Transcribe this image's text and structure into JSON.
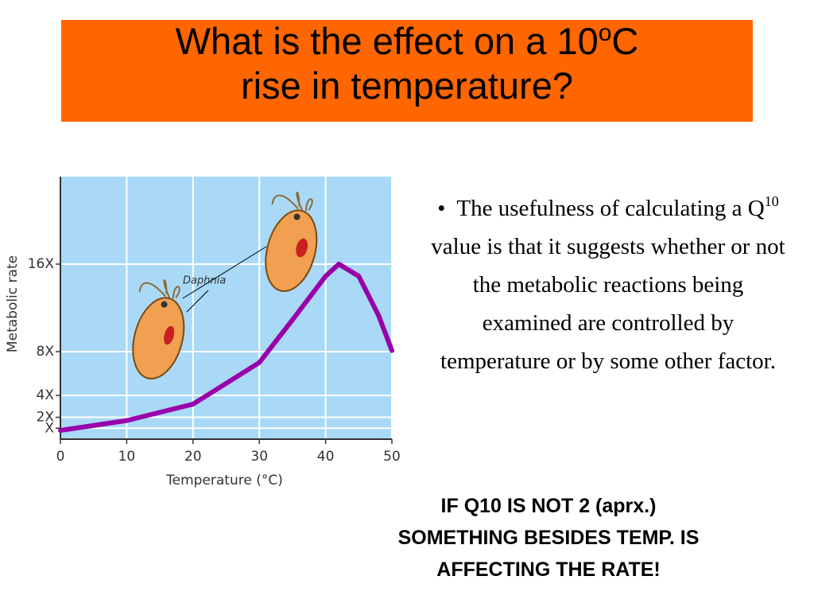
{
  "title": {
    "before": "What is the effect on a 10",
    "sup": "o",
    "after": "C",
    "line2": "rise in temperature?"
  },
  "bullet": {
    "before": "The usefulness of calculating a Q",
    "sup": "10",
    "after": " value is that it suggests whether or not the metabolic reactions being examined are controlled by temperature or by some other factor."
  },
  "conclusion": [
    "IF Q10 IS NOT 2 (aprx.)",
    "SOMETHING BESIDES TEMP. IS",
    "AFFECTING THE RATE!"
  ],
  "chart_data": {
    "type": "line",
    "x_label": "Temperature (°C)",
    "y_label": "Metabolic rate",
    "annotation": "Daphnia",
    "x": [
      0,
      10,
      20,
      30,
      35,
      40,
      42,
      45,
      48,
      50
    ],
    "series": [
      {
        "name": "Metabolic rate",
        "color": "#9900aa",
        "values": [
          0.8,
          1.7,
          3.2,
          7,
          10.9,
          14.9,
          16,
          14.9,
          11.3,
          8.1
        ]
      }
    ],
    "xlim": [
      0,
      50
    ],
    "xticks": [
      0,
      10,
      20,
      30,
      40,
      50
    ],
    "ylim": [
      0,
      24
    ],
    "yticks": [
      {
        "value": 1,
        "label": "X"
      },
      {
        "value": 2,
        "label": "2X"
      },
      {
        "value": 4,
        "label": "4X"
      },
      {
        "value": 8,
        "label": "8X"
      },
      {
        "value": 16,
        "label": "16X"
      }
    ],
    "grid": true,
    "background": "#a9d9f7"
  }
}
